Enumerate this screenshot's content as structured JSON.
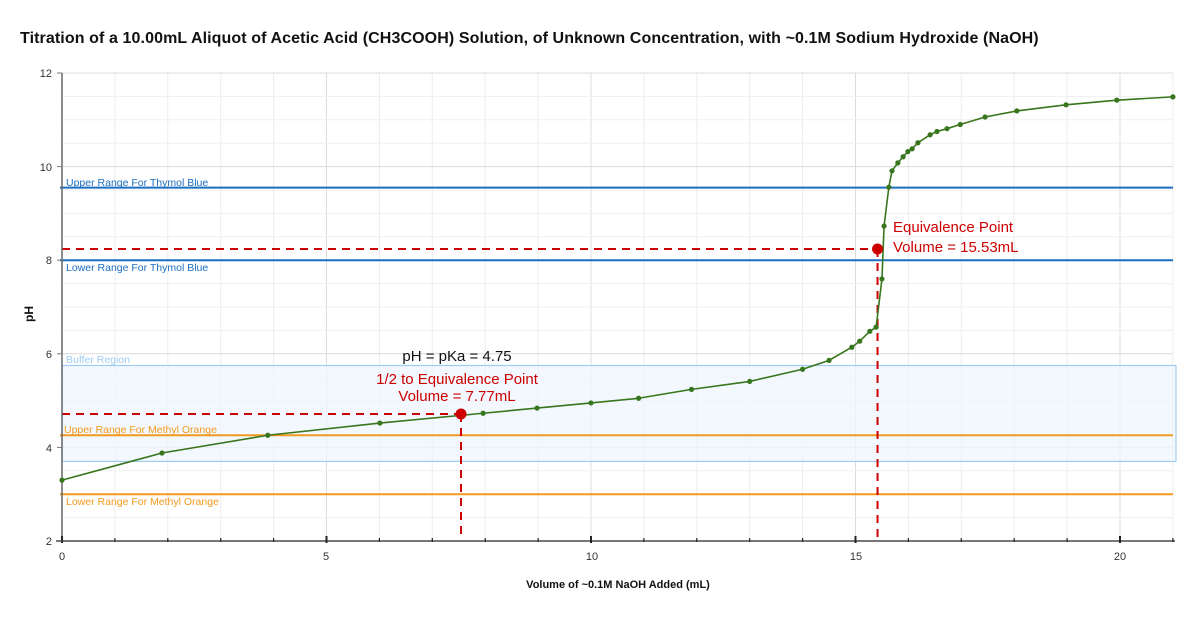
{
  "chart_data": {
    "type": "line",
    "title": "Titration of a 10.00mL Aliquot of Acetic Acid (CH3COOH) Solution, of Unknown Concentration, with ~0.1M Sodium Hydroxide (NaOH)",
    "xlabel": "Volume of ~0.1M NaOH Added (mL)",
    "ylabel": "pH",
    "xlim": [
      0,
      21
    ],
    "ylim": [
      2,
      12
    ],
    "x_ticks": [
      0,
      5,
      10,
      15,
      20
    ],
    "y_ticks": [
      2,
      4,
      6,
      8,
      10,
      12
    ],
    "grid": true,
    "legend": "none",
    "series": [
      {
        "name": "Titration Curve",
        "color": "#38761d",
        "x": [
          0,
          1.89,
          3.89,
          6.01,
          7.96,
          8.98,
          10.0,
          10.9,
          11.9,
          13.0,
          14.0,
          14.5,
          14.93,
          15.08,
          15.27,
          15.39,
          15.5,
          15.54,
          15.63,
          15.69,
          15.8,
          15.9,
          15.99,
          16.07,
          16.18,
          16.41,
          16.54,
          16.73,
          16.98,
          17.45,
          18.05,
          18.98,
          19.94,
          21.0
        ],
        "y": [
          3.3,
          3.88,
          4.26,
          4.52,
          4.73,
          4.84,
          4.95,
          5.05,
          5.24,
          5.41,
          5.67,
          5.86,
          6.14,
          6.27,
          6.48,
          6.57,
          7.6,
          8.73,
          9.56,
          9.91,
          10.08,
          10.21,
          10.32,
          10.38,
          10.51,
          10.68,
          10.75,
          10.81,
          10.9,
          11.06,
          11.19,
          11.32,
          11.42,
          11.49
        ]
      }
    ],
    "reference_lines": [
      {
        "label": "Upper Range For Thymol Blue",
        "y": 9.55,
        "color": "#1c6ebf"
      },
      {
        "label": "Lower Range For Thymol Blue",
        "y": 8.0,
        "color": "#1c6ebf"
      },
      {
        "label": "Upper Range For Methyl Orange",
        "y": 4.26,
        "color": "#f29a1f"
      },
      {
        "label": "Lower Range For Methyl Orange",
        "y": 3.0,
        "color": "#f29a1f"
      }
    ],
    "regions": [
      {
        "label": "Buffer Region",
        "y_from": 3.7,
        "y_to": 5.75,
        "color": "#9fcdf2"
      }
    ],
    "key_points": [
      {
        "name": "Equivalence Point",
        "x": 15.53,
        "y": 8.24,
        "label_line1": "Equivalence Point",
        "label_line2": "Volume = 15.53mL",
        "color": "#cc0000"
      },
      {
        "name": "Half-Equivalence Point",
        "x": 7.77,
        "y": 4.75,
        "label_top": "pH = pKa = 4.75",
        "label_line1": "1/2 to Equivalence Point",
        "label_line2": "Volume = 7.77mL",
        "color": "#cc0000"
      }
    ]
  },
  "labels": {
    "title": "Titration of a 10.00mL Aliquot of Acetic Acid (CH3COOH) Solution, of Unknown Concentration, with ~0.1M Sodium Hydroxide (NaOH)",
    "xlabel": "Volume of ~0.1M NaOH Added (mL)",
    "ylabel": "pH",
    "x_ticks": [
      "0",
      "5",
      "10",
      "15",
      "20"
    ],
    "y_ticks": [
      "2",
      "4",
      "6",
      "8",
      "10",
      "12"
    ],
    "ref_thymol_upper": "Upper Range For Thymol Blue",
    "ref_thymol_lower": "Lower Range For Thymol Blue",
    "ref_methyl_upper": "Upper Range For Methyl Orange",
    "ref_methyl_lower": "Lower Range For Methyl Orange",
    "buffer_region": "Buffer Region",
    "eq_line1": "Equivalence Point",
    "eq_line2": "Volume = 15.53mL",
    "half_top": "pH = pKa = 4.75",
    "half_line1": "1/2 to Equivalence Point",
    "half_line2": "Volume = 7.77mL"
  }
}
